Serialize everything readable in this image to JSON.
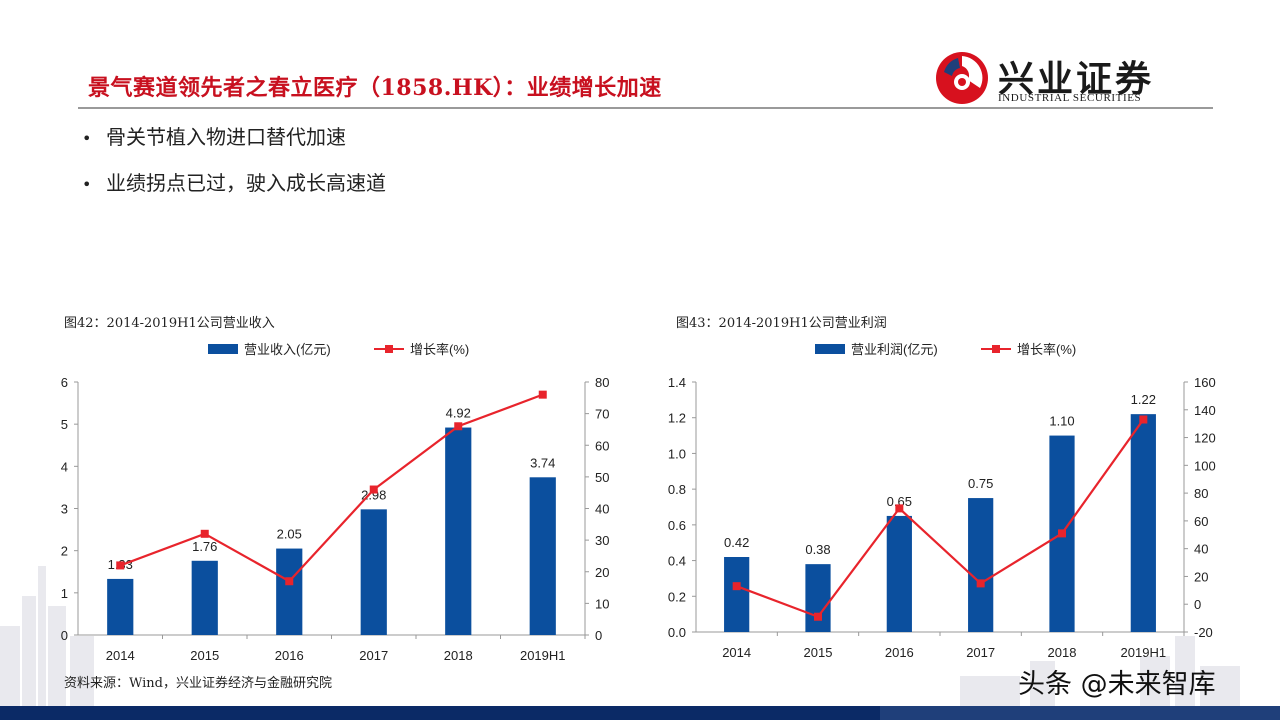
{
  "header": {
    "title": "景气赛道领先者之春立医疗（1858.HK）：业绩增长加速",
    "logo_cn": "兴业证券",
    "logo_en": "INDUSTRIAL SECURITIES"
  },
  "bullets": [
    "骨关节植入物进口替代加速",
    "业绩拐点已过，驶入成长高速道"
  ],
  "figures": [
    {
      "caption": "图42：2014-2019H1公司营业收入"
    },
    {
      "caption": "图43：2014-2019H1公司营业利润"
    }
  ],
  "source": "资料来源：Wind，兴业证券经济与金融研究院",
  "watermark": "头条 @未来智库",
  "colors": {
    "bar": "#0b4f9e",
    "line": "#e8242c",
    "title": "#c8101f"
  },
  "chart_data": [
    {
      "type": "bar",
      "categories": [
        "2014",
        "2015",
        "2016",
        "2017",
        "2018",
        "2019H1"
      ],
      "series": [
        {
          "name": "营业收入(亿元)",
          "type": "bar",
          "axis": "left",
          "values": [
            1.33,
            1.76,
            2.05,
            2.98,
            4.92,
            3.74
          ],
          "labels": [
            "1.33",
            "1.76",
            "2.05",
            "2.98",
            "4.92",
            "3.74"
          ]
        },
        {
          "name": "增长率(%)",
          "type": "line",
          "axis": "right",
          "values": [
            22,
            32,
            17,
            46,
            66,
            76
          ]
        }
      ],
      "ylim_left": [
        0,
        6
      ],
      "yticks_left": [
        "0",
        "1",
        "2",
        "3",
        "4",
        "5",
        "6"
      ],
      "ylim_right": [
        0,
        80
      ],
      "yticks_right": [
        "0",
        "10",
        "20",
        "30",
        "40",
        "50",
        "60",
        "70",
        "80"
      ],
      "legend": "top"
    },
    {
      "type": "bar",
      "categories": [
        "2014",
        "2015",
        "2016",
        "2017",
        "2018",
        "2019H1"
      ],
      "series": [
        {
          "name": "营业利润(亿元)",
          "type": "bar",
          "axis": "left",
          "values": [
            0.42,
            0.38,
            0.65,
            0.75,
            1.1,
            1.22
          ],
          "labels": [
            "0.42",
            "0.38",
            "0.65",
            "0.75",
            "1.10",
            "1.22"
          ]
        },
        {
          "name": "增长率(%)",
          "type": "line",
          "axis": "right",
          "values": [
            13,
            -9,
            69,
            15,
            51,
            133
          ]
        }
      ],
      "ylim_left": [
        0,
        1.4
      ],
      "yticks_left": [
        "0.0",
        "0.2",
        "0.4",
        "0.6",
        "0.8",
        "1.0",
        "1.2",
        "1.4"
      ],
      "ylim_right": [
        -20,
        160
      ],
      "yticks_right": [
        "-20",
        "0",
        "20",
        "40",
        "60",
        "80",
        "100",
        "120",
        "140",
        "160"
      ],
      "legend": "top"
    }
  ]
}
